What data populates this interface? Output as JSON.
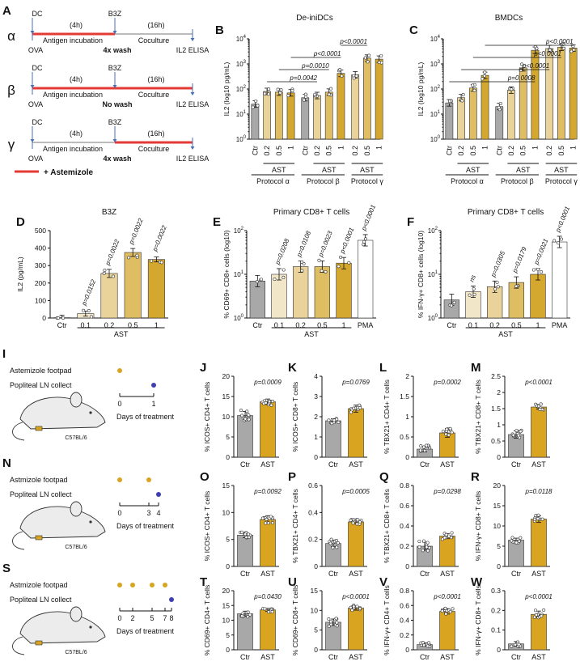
{
  "colors": {
    "ctr": "#a8a8a8",
    "ast1": "#f2e6c9",
    "ast2": "#e9d39a",
    "ast3": "#dfbd62",
    "ast4": "#d4a72e",
    "gold": "#d9a520",
    "red": "#e53935",
    "blue": "#3f3fb0",
    "mouseFill": "#ececec"
  },
  "protocols": [
    {
      "letter": "A",
      "greek": "α",
      "wash": "4x wash",
      "redSeg": "incubation"
    },
    {
      "letter": "",
      "greek": "β",
      "wash": "No wash",
      "redSeg": "both"
    },
    {
      "letter": "",
      "greek": "γ",
      "wash": "4x wash",
      "redSeg": "coculture"
    }
  ],
  "protocol_labels": {
    "dc": "DC",
    "b3z": "B3Z",
    "ova": "OVA",
    "h4": "(4h)",
    "h16": "(16h)",
    "incubation": "Antigen incubation",
    "coculture": "Coculture",
    "elisa": "IL2 ELISA",
    "legend": "+ Astemizole"
  },
  "schematics": [
    {
      "letter": "I",
      "drug": "Astemizole footpad",
      "collect": "Popliteal LN collect",
      "ticks": [
        "0",
        "1"
      ],
      "dosesAt": [
        0
      ],
      "collectAt": 1,
      "axis": "Days of treatment",
      "strain": "C57BL/6"
    },
    {
      "letter": "N",
      "drug": "Astmizole footpad",
      "collect": "Popliteal LN collect",
      "ticks": [
        "0",
        "3",
        "4"
      ],
      "dosesAt": [
        0,
        3
      ],
      "collectAt": 4,
      "axis": "Days of treatment",
      "strain": "C57BL/6"
    },
    {
      "letter": "S",
      "drug": "Astmizole footpad",
      "collect": "Popliteal LN collect",
      "ticks": [
        "0",
        "2",
        "5",
        "7",
        "8"
      ],
      "dosesAt": [
        0,
        2,
        5,
        7
      ],
      "collectAt": 8,
      "axis": "Days of treatment",
      "strain": "C57BL/6"
    }
  ],
  "chart_data": [
    {
      "id": "B",
      "type": "bar",
      "title": "De-iniDCs",
      "ylabel": "IL2 (log10 pg/mL)",
      "yscale": "log",
      "ylim": [
        1,
        10000
      ],
      "categories": [
        "Ctr",
        "0.2",
        "0.5",
        "1",
        "Ctr",
        "0.2",
        "0.5",
        "1",
        "0.2",
        "0.5",
        "1"
      ],
      "values": [
        25,
        80,
        75,
        70,
        45,
        55,
        75,
        420,
        370,
        1700,
        1550
      ],
      "groups": [
        {
          "label": "AST",
          "from": 1,
          "to": 3
        },
        {
          "label": "AST",
          "from": 5,
          "to": 7
        },
        {
          "label": "AST",
          "from": 8,
          "to": 10
        }
      ],
      "protocols": [
        {
          "label": "Protocol α",
          "from": 0,
          "to": 3
        },
        {
          "label": "Protocol β",
          "from": 4,
          "to": 7
        },
        {
          "label": "Protocol γ",
          "from": 8,
          "to": 10
        }
      ],
      "pvalues": [
        {
          "text": "p<0.0001",
          "from": 7,
          "to": 9
        },
        {
          "text": "p<0.0001",
          "from": 3,
          "to": 7
        },
        {
          "text": "p=0.0010",
          "from": 2,
          "to": 6
        },
        {
          "text": "p=0.0042",
          "from": 1,
          "to": 5
        }
      ]
    },
    {
      "id": "C",
      "type": "bar",
      "title": "BMDCs",
      "ylabel": "IL2 (log10 pg/mL)",
      "yscale": "log",
      "ylim": [
        1,
        10000
      ],
      "categories": [
        "Ctr",
        "0.2",
        "0.5",
        "1",
        "Ctr",
        "0.2",
        "0.5",
        "1",
        "0.2",
        "0.5",
        "1"
      ],
      "values": [
        28,
        45,
        110,
        350,
        20,
        90,
        700,
        3500,
        4100,
        4600,
        4300
      ],
      "groups": [
        {
          "label": "AST",
          "from": 1,
          "to": 3
        },
        {
          "label": "AST",
          "from": 5,
          "to": 7
        },
        {
          "label": "AST",
          "from": 8,
          "to": 10
        }
      ],
      "protocols": [
        {
          "label": "Protocol α",
          "from": 0,
          "to": 3
        },
        {
          "label": "Protocol β",
          "from": 4,
          "to": 7
        },
        {
          "label": "Protocol γ",
          "from": 8,
          "to": 10
        }
      ],
      "pvalues": [
        {
          "text": "p<0.0001",
          "from": 3,
          "to": 10
        },
        {
          "text": "p<0.0001",
          "from": 2,
          "to": 9
        },
        {
          "text": "p<0.0001",
          "from": 1,
          "to": 8
        },
        {
          "text": "p=0.0008",
          "from": 0,
          "to": 7
        }
      ]
    },
    {
      "id": "D",
      "type": "bar",
      "title": "B3Z",
      "ylabel": "IL2 (pg/mL)",
      "yscale": "linear",
      "ylim": [
        0,
        500
      ],
      "yticks": [
        0,
        100,
        200,
        300,
        400,
        500
      ],
      "categories": [
        "Ctr",
        "0.1",
        "0.2",
        "0.5",
        "1"
      ],
      "values": [
        2,
        25,
        255,
        375,
        335
      ],
      "groups": [
        {
          "label": "AST",
          "from": 1,
          "to": 4
        }
      ],
      "pvalues": [
        {
          "text": "p=0.0152",
          "at": 1
        },
        {
          "text": "p=0.0022",
          "at": 2
        },
        {
          "text": "p=0.0022",
          "at": 3
        },
        {
          "text": "p=0.0022",
          "at": 4
        }
      ]
    },
    {
      "id": "E",
      "type": "bar",
      "title": "Primary CD8+ T cells",
      "ylabel": "% CD69+ CD8+ cells (log10)",
      "yscale": "log",
      "ylim": [
        1,
        100
      ],
      "categories": [
        "Ctr",
        "0.1",
        "0.2",
        "0.5",
        "1",
        "PMA"
      ],
      "values": [
        7,
        10,
        15,
        15,
        18,
        60
      ],
      "groups": [
        {
          "label": "AST",
          "from": 1,
          "to": 4
        }
      ],
      "pvalues": [
        {
          "text": "p=0.0208",
          "at": 1
        },
        {
          "text": "p=0.0108",
          "at": 2
        },
        {
          "text": "p=0.0023",
          "at": 3
        },
        {
          "text": "p<0.0001",
          "at": 4
        },
        {
          "text": "p<0.0001",
          "at": 5
        }
      ]
    },
    {
      "id": "F",
      "type": "bar",
      "title": "Primary CD8+ T cells",
      "ylabel": "% IFN-γ+ CD8+ cells (log10)",
      "yscale": "log",
      "ylim": [
        1,
        100
      ],
      "categories": [
        "Ctr",
        "0.1",
        "0.2",
        "0.5",
        "1",
        "PMA"
      ],
      "values": [
        2.6,
        4,
        5.2,
        6.5,
        10,
        55
      ],
      "groups": [
        {
          "label": "AST",
          "from": 1,
          "to": 4
        }
      ],
      "pvalues": [
        {
          "text": "ns",
          "at": 1
        },
        {
          "text": "p=0.0305",
          "at": 2
        },
        {
          "text": "p=0.0179",
          "at": 3
        },
        {
          "text": "p=0.0021",
          "at": 4
        },
        {
          "text": "p<0.0001",
          "at": 5
        }
      ]
    },
    {
      "id": "J",
      "type": "bar",
      "ylabel": "% ICOS+ CD4+ T cells",
      "ylim": [
        0,
        20
      ],
      "yticks": [
        0,
        5,
        10,
        15,
        20
      ],
      "categories": [
        "Ctr",
        "AST"
      ],
      "values": [
        10.3,
        13.7
      ],
      "pvalue": "p=0.0009"
    },
    {
      "id": "K",
      "type": "bar",
      "ylabel": "% ICOS+ CD8+ T cells",
      "ylim": [
        0,
        4
      ],
      "yticks": [
        0,
        1,
        2,
        3,
        4
      ],
      "categories": [
        "Ctr",
        "AST"
      ],
      "values": [
        1.8,
        2.4
      ],
      "pvalue": "p=0.0769"
    },
    {
      "id": "L",
      "type": "bar",
      "ylabel": "% TBX21+ CD4+ T cells",
      "ylim": [
        0,
        2
      ],
      "yticks": [
        0,
        0.5,
        1,
        1.5,
        2
      ],
      "categories": [
        "Ctr",
        "AST"
      ],
      "values": [
        0.2,
        0.6
      ],
      "pvalue": "p=0.0002"
    },
    {
      "id": "M",
      "type": "bar",
      "ylabel": "% TBX21+ CD8+ T cells",
      "ylim": [
        0,
        2.5
      ],
      "yticks": [
        0,
        0.5,
        1,
        1.5,
        2,
        2.5
      ],
      "categories": [
        "Ctr",
        "AST"
      ],
      "values": [
        0.7,
        1.55
      ],
      "pvalue": "p<0.0001"
    },
    {
      "id": "O",
      "type": "bar",
      "ylabel": "% ICOS+ CD4+ T cells",
      "ylim": [
        0,
        15
      ],
      "yticks": [
        0,
        5,
        10,
        15
      ],
      "categories": [
        "Ctr",
        "AST"
      ],
      "values": [
        5.8,
        8.7
      ],
      "pvalue": "p=0.0092"
    },
    {
      "id": "P",
      "type": "bar",
      "ylabel": "% TBX21+ CD4+ T cells",
      "ylim": [
        0,
        0.6
      ],
      "yticks": [
        0,
        0.2,
        0.4,
        0.6
      ],
      "categories": [
        "Ctr",
        "AST"
      ],
      "values": [
        0.17,
        0.33
      ],
      "pvalue": "p=0.0005"
    },
    {
      "id": "Q",
      "type": "bar",
      "ylabel": "% TBX21+ CD8+ T cells",
      "ylim": [
        0,
        0.8
      ],
      "yticks": [
        0,
        0.2,
        0.4,
        0.6,
        0.8
      ],
      "categories": [
        "Ctr",
        "AST"
      ],
      "values": [
        0.2,
        0.3
      ],
      "pvalue": "p=0.0298"
    },
    {
      "id": "R",
      "type": "bar",
      "ylabel": "% IFN-γ+ CD8+ T cells",
      "ylim": [
        0,
        20
      ],
      "yticks": [
        0,
        5,
        10,
        15,
        20
      ],
      "categories": [
        "Ctr",
        "AST"
      ],
      "values": [
        6.5,
        11.7
      ],
      "pvalue": "p=0.0118"
    },
    {
      "id": "T",
      "type": "bar",
      "ylabel": "% CD69+ CD4+ T cells",
      "ylim": [
        0,
        20
      ],
      "yticks": [
        0,
        5,
        10,
        15,
        20
      ],
      "categories": [
        "Ctr",
        "AST"
      ],
      "values": [
        12.2,
        13.5
      ],
      "pvalue": "p=0.0430"
    },
    {
      "id": "U",
      "type": "bar",
      "ylabel": "% CD69+ CD8+ T cells",
      "ylim": [
        0,
        15
      ],
      "yticks": [
        0,
        5,
        10,
        15
      ],
      "categories": [
        "Ctr",
        "AST"
      ],
      "values": [
        7,
        10.6
      ],
      "pvalue": "p<0.0001"
    },
    {
      "id": "V",
      "type": "bar",
      "ylabel": "% IFN-γ+ CD4+ T cells",
      "ylim": [
        0,
        0.8
      ],
      "yticks": [
        0,
        0.2,
        0.4,
        0.6,
        0.8
      ],
      "categories": [
        "Ctr",
        "AST"
      ],
      "values": [
        0.07,
        0.52
      ],
      "pvalue": "p<0.0001"
    },
    {
      "id": "W",
      "type": "bar",
      "ylabel": "% IFN-γ+ CD8+ T cells",
      "ylim": [
        0,
        0.3
      ],
      "yticks": [
        0,
        0.1,
        0.2,
        0.3
      ],
      "categories": [
        "Ctr",
        "AST"
      ],
      "values": [
        0.03,
        0.18
      ],
      "pvalue": "p<0.0001"
    }
  ]
}
